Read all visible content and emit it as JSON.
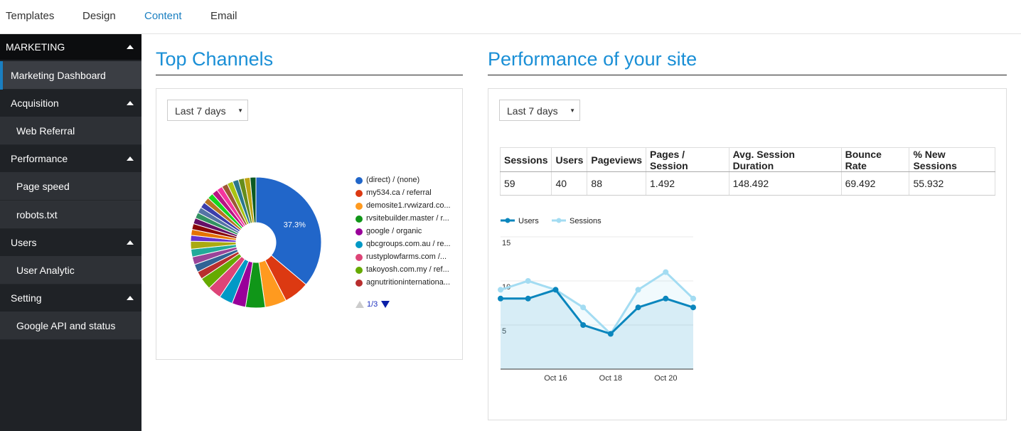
{
  "topnav": {
    "tabs": [
      {
        "label": "Templates",
        "active": false
      },
      {
        "label": "Design",
        "active": false
      },
      {
        "label": "Content",
        "active": true
      },
      {
        "label": "Email",
        "active": false
      }
    ]
  },
  "sidebar": {
    "header": "MARKETING",
    "dashboard": "Marketing Dashboard",
    "groups": [
      {
        "label": "Acquisition",
        "items": [
          "Web Referral"
        ]
      },
      {
        "label": "Performance",
        "items": [
          "Page speed",
          "robots.txt"
        ]
      },
      {
        "label": "Users",
        "items": [
          "User Analytic"
        ]
      },
      {
        "label": "Setting",
        "items": [
          "Google API and status"
        ]
      }
    ]
  },
  "top_channels": {
    "title": "Top Channels",
    "range_select": "Last 7 days",
    "pager": "1/3"
  },
  "performance": {
    "title": "Performance of your site",
    "range_select": "Last 7 days",
    "table": {
      "headers": [
        "Sessions",
        "Users",
        "Pageviews",
        "Pages / Session",
        "Avg. Session Duration",
        "Bounce Rate",
        "% New Sessions"
      ],
      "row": [
        "59",
        "40",
        "88",
        "1.492",
        "148.492",
        "69.492",
        "55.932"
      ]
    }
  },
  "chart_data": [
    {
      "type": "pie",
      "title": "",
      "donut": true,
      "slice_label": "37.3%",
      "legend_placement": "right",
      "legend": [
        {
          "label": "(direct) / (none)",
          "color": "#2166c9"
        },
        {
          "label": "my534.ca / referral",
          "color": "#dc3912"
        },
        {
          "label": "demosite1.rvwizard.co...",
          "color": "#ff9a1f"
        },
        {
          "label": "rvsitebuilder.master / r...",
          "color": "#109618"
        },
        {
          "label": "google / organic",
          "color": "#990099"
        },
        {
          "label": "qbcgroups.com.au / re...",
          "color": "#0099c6"
        },
        {
          "label": "rustyplowfarms.com /...",
          "color": "#dd4477"
        },
        {
          "label": "takoyosh.com.my / ref...",
          "color": "#66aa00"
        },
        {
          "label": "agnutritioninternationa...",
          "color": "#b82e2e"
        }
      ],
      "values": [
        37.3,
        6.5,
        5.5,
        5.0,
        3.5,
        3.5,
        3.5,
        3.0,
        2.0,
        2.0,
        2.0,
        2.0,
        2.0,
        1.5,
        1.5,
        1.5,
        1.5,
        1.5,
        1.5,
        1.5,
        1.5,
        1.5,
        1.5,
        1.5,
        1.5,
        1.5,
        1.5,
        1.5,
        1.5,
        1.5
      ],
      "colors": [
        "#2166c9",
        "#dc3912",
        "#ff9a1f",
        "#109618",
        "#990099",
        "#0099c6",
        "#dd4477",
        "#66aa00",
        "#b82e2e",
        "#316395",
        "#994499",
        "#22aa99",
        "#aaaa11",
        "#6633cc",
        "#e67300",
        "#8b0707",
        "#651067",
        "#329262",
        "#5574a6",
        "#3b3eac",
        "#b77322",
        "#16d620",
        "#b91383",
        "#f4359e",
        "#9c5935",
        "#a9c413",
        "#2a778d",
        "#668d1c",
        "#bea413",
        "#0c5922"
      ]
    },
    {
      "type": "area",
      "title": "",
      "x": [
        "Oct 14",
        "Oct 15",
        "Oct 16",
        "Oct 17",
        "Oct 18",
        "Oct 19",
        "Oct 20",
        "Oct 21"
      ],
      "xticks": [
        "Oct 16",
        "Oct 18",
        "Oct 20"
      ],
      "yticks": [
        "5",
        "10",
        "15"
      ],
      "ylim": [
        0,
        15
      ],
      "legend_placement": "top-left",
      "series": [
        {
          "name": "Users",
          "color": "#0a86bd",
          "values": [
            8,
            8,
            9,
            5,
            4,
            7,
            8,
            7
          ]
        },
        {
          "name": "Sessions",
          "color": "#a3dcf2",
          "values": [
            9,
            10,
            9,
            7,
            4,
            9,
            11,
            8
          ]
        }
      ]
    }
  ]
}
